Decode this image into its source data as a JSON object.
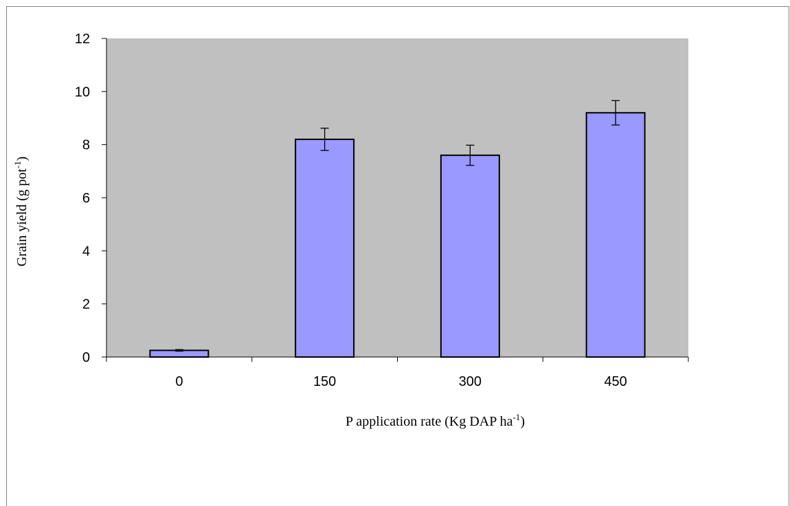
{
  "chart_data": {
    "type": "bar",
    "categories": [
      "0",
      "150",
      "300",
      "450"
    ],
    "values": [
      0.25,
      8.2,
      7.6,
      9.2
    ],
    "errors": [
      0.03,
      0.42,
      0.38,
      0.46
    ],
    "xlabel": {
      "main": "P application rate  (Kg DAP ha",
      "sup": "-1",
      "tail": ")"
    },
    "ylabel": {
      "main": "Grain yield (g pot",
      "sup": "-1",
      "tail": ")"
    },
    "ylim": [
      0,
      12
    ],
    "yticks": [
      0,
      2,
      4,
      6,
      8,
      10,
      12
    ],
    "grid": false,
    "legend": "none",
    "colors": {
      "plot_background": "#c0c0c0",
      "bar_fill": "#9999ff",
      "bar_stroke": "#000000"
    }
  }
}
